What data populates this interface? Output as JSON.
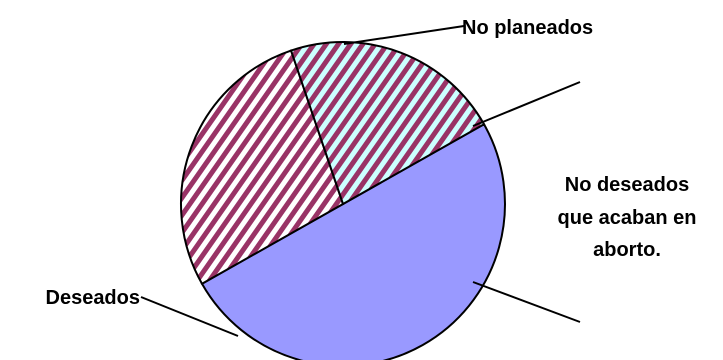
{
  "chart_data": {
    "type": "pie",
    "slices": [
      {
        "label": "Deseados",
        "value": 50,
        "color": "#9999ff",
        "pattern": "solid"
      },
      {
        "label": "No planeados",
        "value": 28,
        "color": "#993366",
        "pattern": "diagonal-stripes"
      },
      {
        "label": "No deseados que acaban en aborto.",
        "value": 22,
        "color": "#ccffff",
        "pattern": "diagonal-stripes",
        "stripe_color": "#993366"
      }
    ],
    "label_lines": [
      "No deseados",
      "que acaban en",
      "aborto."
    ],
    "outline_color": "#000000",
    "title": "",
    "legend": "none"
  }
}
